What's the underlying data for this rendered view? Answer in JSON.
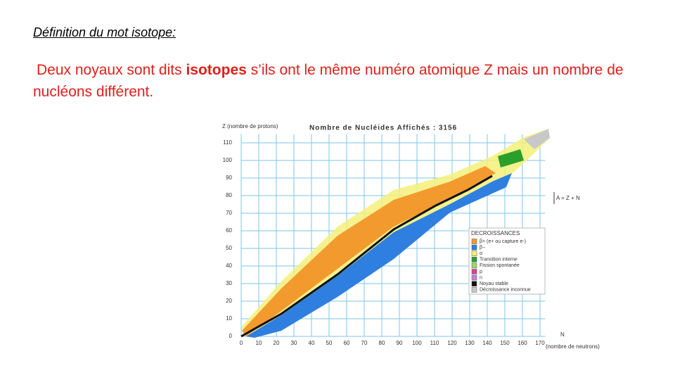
{
  "heading": "Définition du mot isotope:",
  "paragraph": {
    "parts": [
      "Deux noyaux sont dits ",
      "isotopes",
      " s’ils ont le même numéro atomique Z mais un nombre de nucléons différent."
    ]
  },
  "chart_data": {
    "type": "nuclide",
    "title": "Nombre de Nucléides Affichés : 3156",
    "y_label": "Z (nombre de protons)",
    "x_label": "N",
    "x_sublabel": "(nombre de neutrons)",
    "annotation": "A = Z + N",
    "xlim": [
      0,
      173
    ],
    "ylim": [
      0,
      115
    ],
    "xticks": [
      0,
      10,
      20,
      30,
      40,
      50,
      60,
      70,
      80,
      90,
      100,
      110,
      120,
      130,
      140,
      150,
      160,
      170
    ],
    "yticks": [
      0,
      10,
      20,
      30,
      40,
      50,
      60,
      70,
      80,
      90,
      100,
      110
    ],
    "grid": true,
    "legend": {
      "title": "DECROISSANCES",
      "items": [
        {
          "name": "β+ (e+ ou capture e-)",
          "color": "#f39a2e"
        },
        {
          "name": "β−",
          "color": "#2f7fe0"
        },
        {
          "name": "α",
          "color": "#f4f07a"
        },
        {
          "name": "Transition interne",
          "color": "#2aa02a"
        },
        {
          "name": "Fission spontanée",
          "color": "#9bd86a"
        },
        {
          "name": "p",
          "color": "#e0408a"
        },
        {
          "name": "n",
          "color": "#c080e0"
        },
        {
          "name": "Noyau stable",
          "color": "#111111"
        },
        {
          "name": "Décroissance inconnue",
          "color": "#c8c8c8"
        }
      ]
    }
  }
}
